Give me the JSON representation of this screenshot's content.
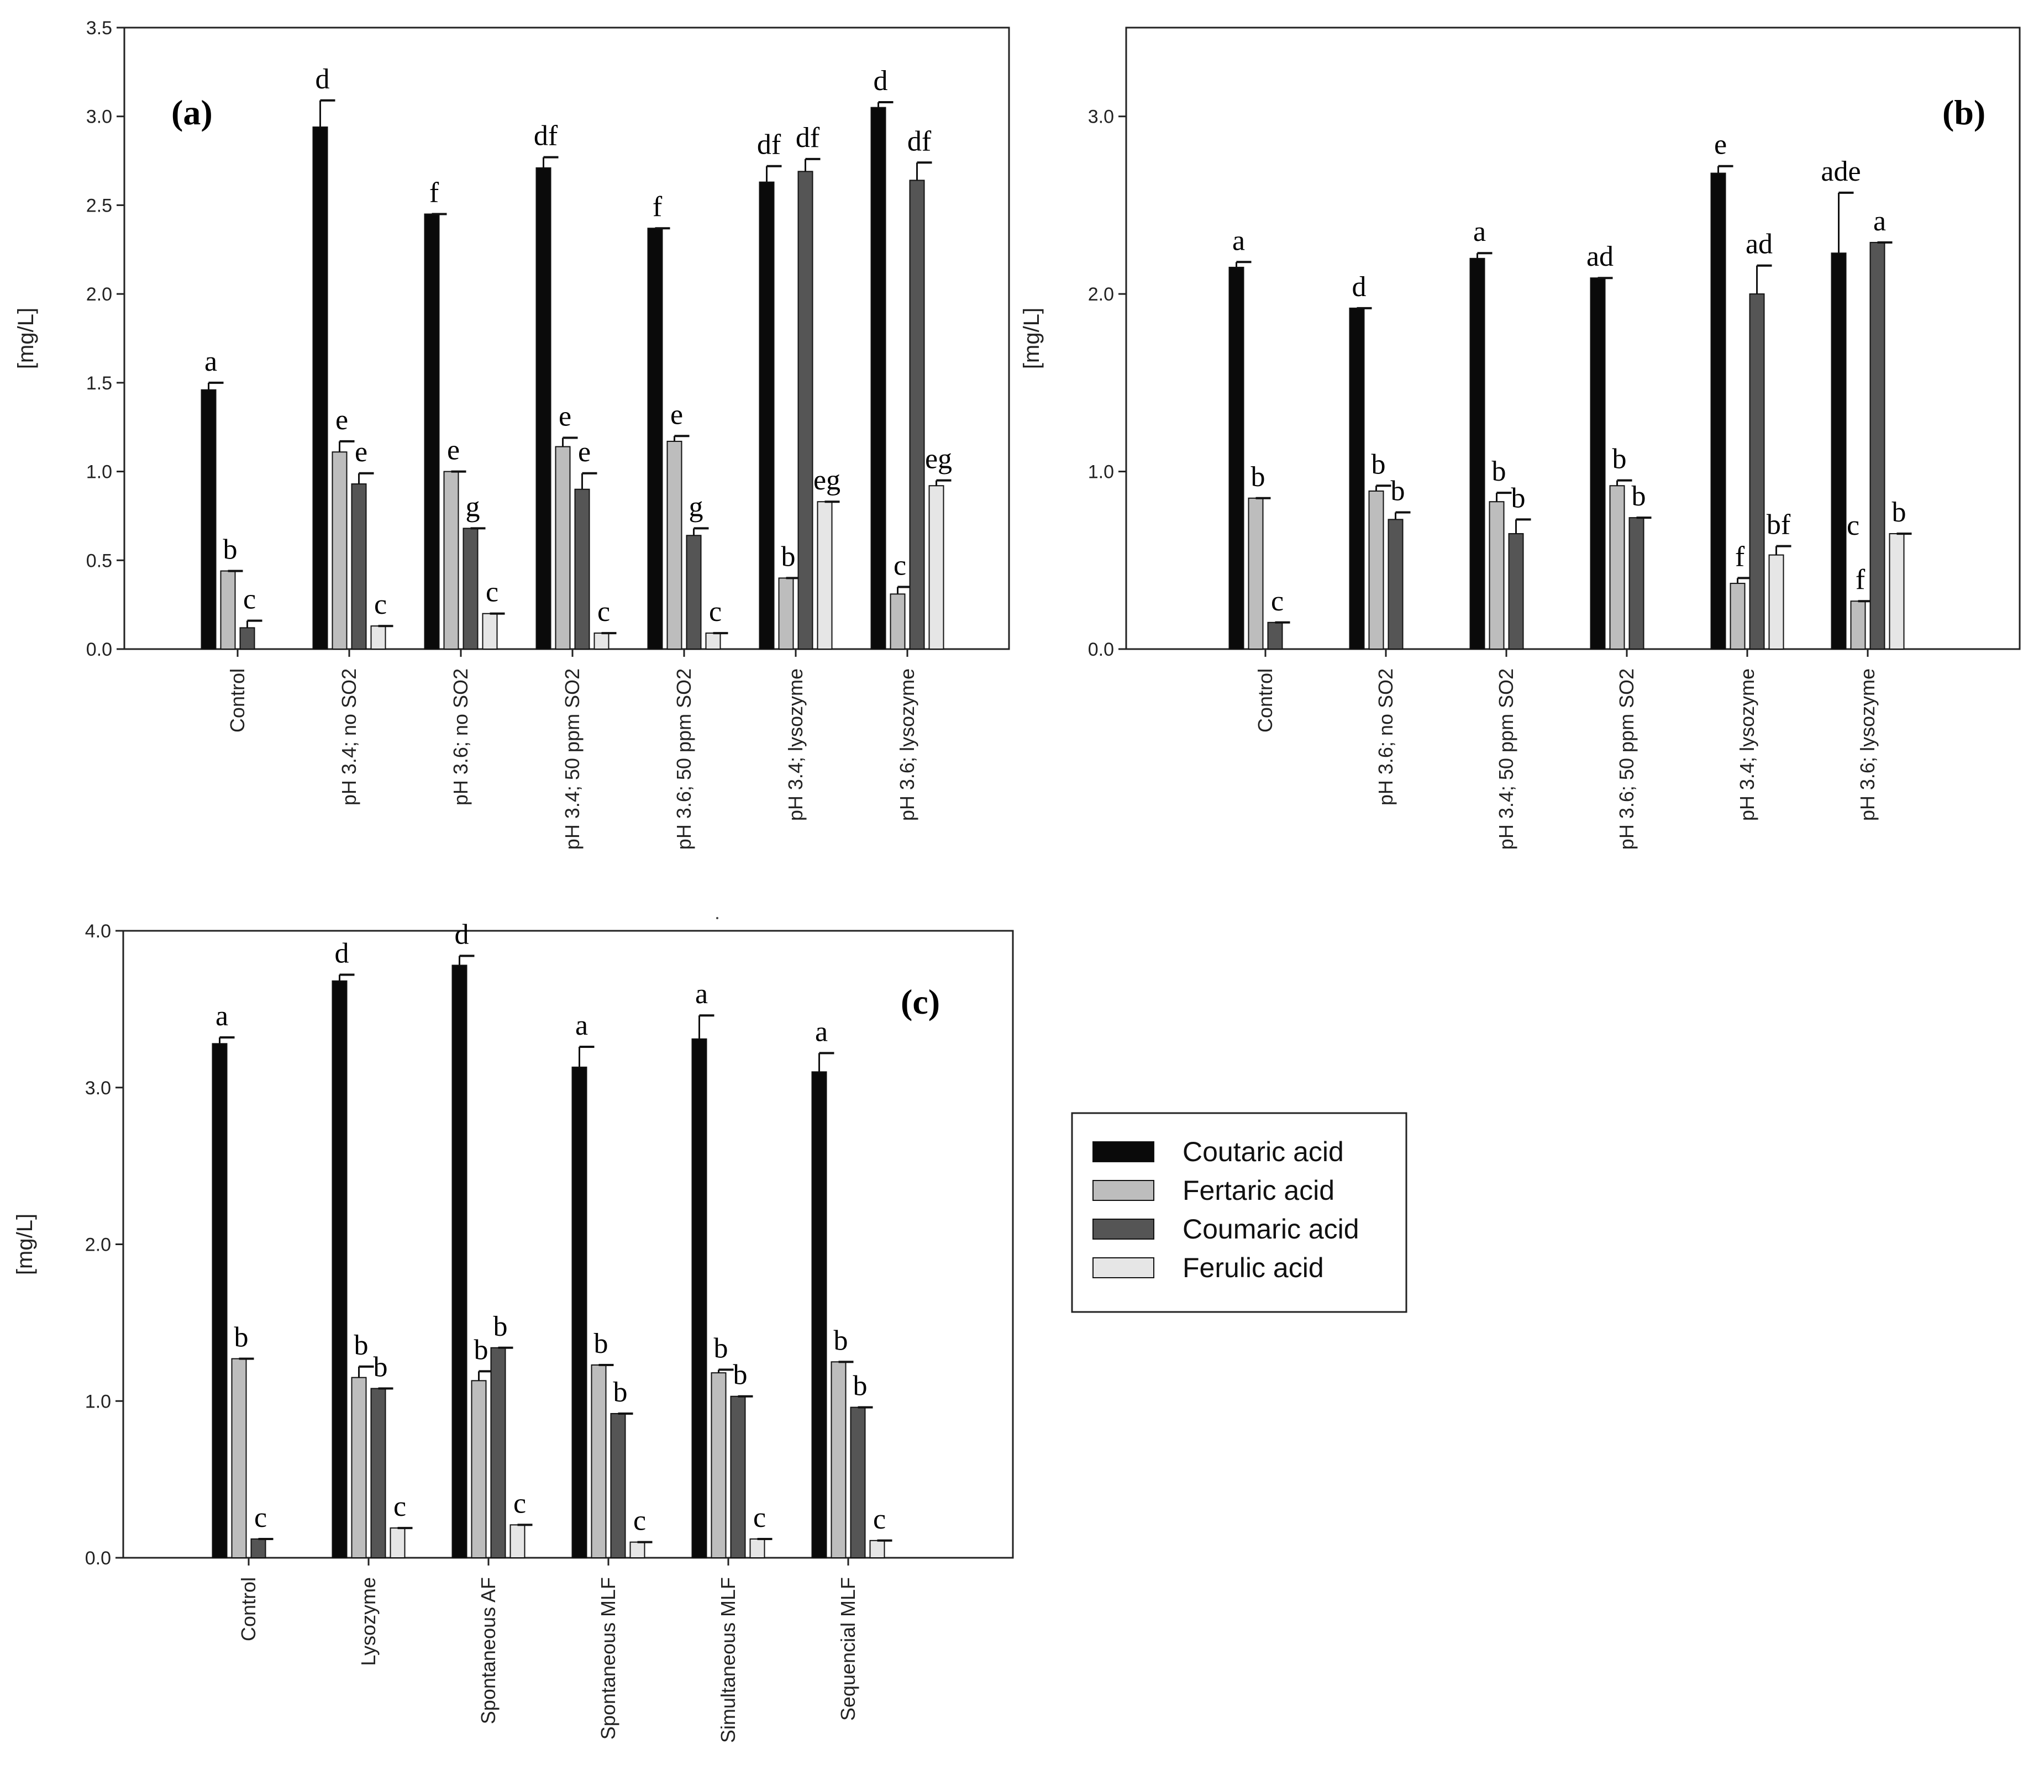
{
  "colors": {
    "coutaric": "#0a0a0a",
    "fertaric": "#bdbdbd",
    "coumaric": "#555555",
    "ferulic": "#e6e6e6"
  },
  "legend": {
    "entries": [
      "Coutaric acid",
      "Fertaric acid",
      "Coumaric acid",
      "Ferulic acid"
    ]
  },
  "chart_data": [
    {
      "type": "bar",
      "panel_label": "(a)",
      "ylabel": "[mg/L]",
      "ylim": [
        0,
        3.5
      ],
      "yticks": [
        "0.0",
        "0.5",
        "1.0",
        "1.5",
        "2.0",
        "2.5",
        "3.0",
        "3.5"
      ],
      "categories": [
        "Control",
        "pH 3.4; no SO2",
        "pH 3.6; no SO2",
        "pH 3.4; 50 ppm SO2",
        "pH 3.6; 50 ppm SO2",
        "pH 3.4; lysozyme",
        "pH 3.6; lysozyme"
      ],
      "series": [
        {
          "name": "Coutaric acid",
          "values": [
            1.46,
            2.94,
            2.45,
            2.71,
            2.37,
            2.63,
            3.05
          ],
          "errors": [
            0.04,
            0.15,
            0.0,
            0.06,
            0.0,
            0.09,
            0.03
          ],
          "labels": [
            "a",
            "d",
            "f",
            "df",
            "f",
            "df",
            "d"
          ]
        },
        {
          "name": "Fertaric acid",
          "values": [
            0.44,
            1.11,
            1.0,
            1.14,
            1.17,
            0.4,
            0.31
          ],
          "errors": [
            0.0,
            0.06,
            0.0,
            0.05,
            0.03,
            0.0,
            0.04
          ],
          "labels": [
            "b",
            "e",
            "e",
            "e",
            "e",
            "b",
            "c"
          ]
        },
        {
          "name": "Coumaric acid",
          "values": [
            0.12,
            0.93,
            0.68,
            0.9,
            0.64,
            2.69,
            2.64
          ],
          "errors": [
            0.04,
            0.06,
            0.0,
            0.09,
            0.04,
            0.07,
            0.1
          ],
          "labels": [
            "c",
            "e",
            "g",
            "e",
            "g",
            "df",
            "df"
          ]
        },
        {
          "name": "Ferulic acid",
          "values": [
            0.0,
            0.13,
            0.2,
            0.09,
            0.09,
            0.83,
            0.92
          ],
          "errors": [
            0.0,
            0.0,
            0.0,
            0.0,
            0.0,
            0.0,
            0.03
          ],
          "labels": [
            "",
            "c",
            "c",
            "c",
            "c",
            "eg",
            "eg"
          ]
        }
      ]
    },
    {
      "type": "bar",
      "panel_label": "(b)",
      "ylabel": "[mg/L]",
      "ylim": [
        0,
        3.5
      ],
      "yticks": [
        "0.0",
        "1.0",
        "2.0",
        "3.0"
      ],
      "categories": [
        "Control",
        "pH 3.6; no SO2",
        "pH 3.4; 50 ppm SO2",
        "pH 3.6; 50 ppm SO2",
        "pH 3.4; lysozyme",
        "pH 3.6; lysozyme"
      ],
      "series": [
        {
          "name": "Coutaric acid",
          "values": [
            2.15,
            1.92,
            2.2,
            2.09,
            2.68,
            2.23
          ],
          "errors": [
            0.03,
            0.0,
            0.03,
            0.0,
            0.04,
            0.34
          ],
          "labels": [
            "a",
            "d",
            "a",
            "ad",
            "e",
            "ade"
          ]
        },
        {
          "name": "Fertaric acid",
          "values": [
            0.85,
            0.89,
            0.83,
            0.92,
            0.37,
            0.27
          ],
          "errors": [
            0.0,
            0.03,
            0.05,
            0.03,
            0.03,
            0.0
          ],
          "labels": [
            "b",
            "b",
            "b",
            "b",
            "f",
            "f"
          ]
        },
        {
          "name": "Coumaric acid",
          "values": [
            0.15,
            0.73,
            0.65,
            0.74,
            2.0,
            2.29
          ],
          "errors": [
            0.0,
            0.04,
            0.08,
            0.0,
            0.16,
            0.0
          ],
          "labels": [
            "c",
            "b",
            "b",
            "b",
            "ad",
            "a"
          ]
        },
        {
          "name": "Ferulic acid",
          "values": [
            0.0,
            0.0,
            0.0,
            0.0,
            0.53,
            0.65
          ],
          "errors": [
            0.0,
            0.0,
            0.0,
            0.0,
            0.05,
            0.0
          ],
          "labels": [
            "",
            "",
            "",
            "",
            "bf",
            "b"
          ]
        }
      ],
      "extra_labels": [
        {
          "series": 2,
          "index": 5,
          "text": "c",
          "side": "left-of-fertaric"
        }
      ]
    },
    {
      "type": "bar",
      "panel_label": "(c)",
      "ylabel": "[mg/L]",
      "ylim": [
        0,
        4.0
      ],
      "yticks": [
        "0.0",
        "1.0",
        "2.0",
        "3.0",
        "4.0"
      ],
      "categories": [
        "Control",
        "Lysozyme",
        "Spontaneous AF",
        "Spontaneous MLF",
        "Simultaneous MLF",
        "Sequencial MLF"
      ],
      "series": [
        {
          "name": "Coutaric acid",
          "values": [
            3.28,
            3.68,
            3.78,
            3.13,
            3.31,
            3.1
          ],
          "errors": [
            0.04,
            0.04,
            0.06,
            0.13,
            0.15,
            0.12
          ],
          "labels": [
            "a",
            "d",
            "d",
            "a",
            "a",
            "a"
          ]
        },
        {
          "name": "Fertaric acid",
          "values": [
            1.27,
            1.15,
            1.13,
            1.23,
            1.18,
            1.25
          ],
          "errors": [
            0.0,
            0.07,
            0.06,
            0.0,
            0.02,
            0.0
          ],
          "labels": [
            "b",
            "b",
            "b",
            "b",
            "b",
            "b"
          ]
        },
        {
          "name": "Coumaric acid",
          "values": [
            0.12,
            1.08,
            1.34,
            0.92,
            1.03,
            0.96
          ],
          "errors": [
            0.0,
            0.0,
            0.0,
            0.0,
            0.0,
            0.0
          ],
          "labels": [
            "c",
            "b",
            "b",
            "b",
            "b",
            "b"
          ]
        },
        {
          "name": "Ferulic acid",
          "values": [
            0.0,
            0.19,
            0.21,
            0.1,
            0.12,
            0.11
          ],
          "errors": [
            0.0,
            0.0,
            0.0,
            0.0,
            0.0,
            0.0
          ],
          "labels": [
            "",
            "c",
            "c",
            "c",
            "c",
            "c"
          ]
        }
      ]
    }
  ]
}
